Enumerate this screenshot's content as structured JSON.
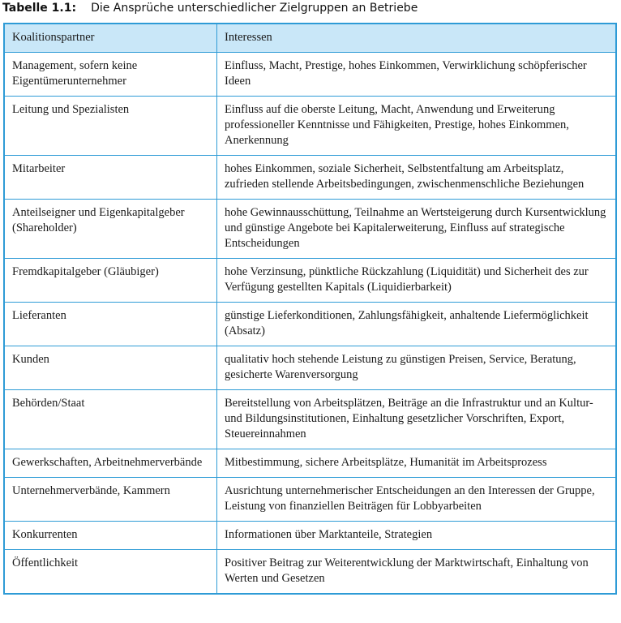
{
  "title": {
    "label": "Tabelle 1.1:",
    "text": "Die Ansprüche unterschiedlicher Zielgruppen an Betriebe"
  },
  "table": {
    "headers": [
      "Koalitionspartner",
      "Interessen"
    ],
    "rows": [
      [
        "Management, sofern keine Eigentümerunternehmer",
        "Einfluss, Macht, Prestige, hohes Einkommen, Verwirklichung schöpferischer Ideen"
      ],
      [
        "Leitung und Spezialisten",
        "Einfluss auf die oberste Leitung, Macht, Anwendung und Erweiterung professioneller Kenntnisse und Fähigkeiten, Prestige, hohes Einkommen, Anerkennung"
      ],
      [
        "Mitarbeiter",
        "hohes Einkommen, soziale Sicherheit, Selbstentfaltung am Arbeitsplatz, zufrieden stellende Arbeitsbedingungen, zwischenmenschliche Beziehungen"
      ],
      [
        "Anteilseigner und Eigenkapitalgeber (Shareholder)",
        "hohe Gewinnausschüttung, Teilnahme an Wertsteigerung durch Kursentwicklung und günstige Angebote bei Kapitalerweiterung, Einfluss auf strategische Entscheidungen"
      ],
      [
        "Fremdkapitalgeber (Gläubiger)",
        "hohe Verzinsung, pünktliche Rückzahlung (Liquidität) und Sicherheit des zur Verfügung gestellten Kapitals (Liquidierbarkeit)"
      ],
      [
        "Lieferanten",
        "günstige Lieferkonditionen, Zahlungsfähigkeit, anhaltende Liefermöglichkeit (Absatz)"
      ],
      [
        "Kunden",
        "qualitativ hoch stehende Leistung zu günstigen Preisen, Service, Beratung, gesicherte Warenversorgung"
      ],
      [
        "Behörden/Staat",
        "Bereitstellung von Arbeitsplätzen, Beiträge an die Infrastruktur und an Kultur- und Bildungsinstitutionen, Einhaltung gesetzlicher Vorschriften, Export, Steuereinnahmen"
      ],
      [
        "Gewerkschaften, Arbeitnehmerverbände",
        "Mitbestimmung, sichere Arbeitsplätze, Humanität im Arbeitsprozess"
      ],
      [
        "Unternehmerverbände, Kammern",
        "Ausrichtung unternehmerischer Entscheidungen an den Interessen der Gruppe, Leistung von finanziellen Beiträgen für Lobbyarbeiten"
      ],
      [
        "Konkurrenten",
        "Informationen über Marktanteile, Strategien"
      ],
      [
        "Öffentlichkeit",
        "Positiver Beitrag zur Weiterentwicklung der Marktwirtschaft, Einhaltung von Werten und Gesetzen"
      ]
    ]
  },
  "colors": {
    "border": "#2e9bd6",
    "header_bg": "#c9e7f8"
  }
}
